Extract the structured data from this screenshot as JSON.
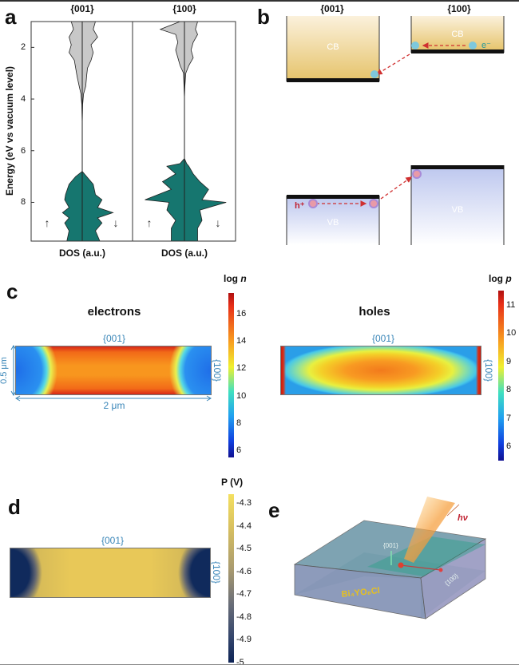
{
  "panel_labels": {
    "a": "a",
    "b": "b",
    "c": "c",
    "d": "d",
    "e": "e"
  },
  "chart_data": [
    {
      "type": "area",
      "panel": "a",
      "facets": [
        "{001}",
        "{100}"
      ],
      "ylabel": "Energy (eV vs vacuum level)",
      "xlabel": "DOS (a.u.)",
      "yticks": [
        2,
        4,
        6,
        8
      ],
      "ylim": [
        1,
        9.5
      ],
      "y_inverted": true,
      "spin_labels": [
        "↑",
        "↓"
      ],
      "colors": {
        "conduction": "#c8c8c8",
        "valence": "#16766f"
      },
      "series": [
        {
          "facet": "{001}",
          "points_energy_up_down": [
            [
              1,
              0.25,
              0.3
            ],
            [
              1.3,
              0.2,
              0.25
            ],
            [
              1.6,
              0.3,
              0.35
            ],
            [
              1.9,
              0.25,
              0.2
            ],
            [
              2.2,
              0.3,
              0.25
            ],
            [
              2.5,
              0.18,
              0.2
            ],
            [
              2.8,
              0.15,
              0.12
            ],
            [
              3.1,
              0.12,
              0.1
            ],
            [
              3.5,
              0.07,
              0.08
            ],
            [
              3.8,
              0.03,
              0.03
            ],
            [
              4.2,
              0.01,
              0.01
            ],
            [
              5,
              0,
              0
            ],
            [
              6.8,
              0,
              0
            ],
            [
              7,
              0.15,
              0.1
            ],
            [
              7.3,
              0.3,
              0.25
            ],
            [
              7.7,
              0.38,
              0.3
            ],
            [
              7.9,
              0.4,
              0.45
            ],
            [
              8.2,
              0.3,
              0.35
            ],
            [
              8.4,
              0.45,
              0.7
            ],
            [
              8.6,
              0.3,
              0.35
            ],
            [
              8.8,
              0.4,
              0.45
            ],
            [
              9.1,
              0.3,
              0.3
            ],
            [
              9.5,
              0.35,
              0.4
            ]
          ]
        },
        {
          "facet": "{100}",
          "points_energy_up_down": [
            [
              1,
              0.1,
              0.3
            ],
            [
              1.3,
              0.55,
              0.25
            ],
            [
              1.5,
              0.2,
              0.3
            ],
            [
              1.8,
              0.15,
              0.2
            ],
            [
              2.1,
              0.2,
              0.15
            ],
            [
              2.4,
              0.15,
              0.2
            ],
            [
              2.7,
              0.1,
              0.1
            ],
            [
              3,
              0.02,
              0.03
            ],
            [
              3.5,
              0.01,
              0.01
            ],
            [
              4,
              0,
              0
            ],
            [
              6.3,
              0,
              0
            ],
            [
              6.5,
              0.1,
              0.05
            ],
            [
              6.6,
              0.4,
              0.1
            ],
            [
              6.9,
              0.2,
              0.2
            ],
            [
              7.2,
              0.5,
              0.35
            ],
            [
              7.5,
              0.3,
              0.55
            ],
            [
              7.9,
              0.9,
              0.4
            ],
            [
              8.0,
              0.35,
              0.95
            ],
            [
              8.3,
              0.4,
              0.35
            ],
            [
              8.7,
              0.2,
              0.4
            ],
            [
              9,
              0.3,
              0.3
            ],
            [
              9.5,
              0.3,
              0.3
            ]
          ]
        }
      ]
    },
    {
      "type": "heatmap",
      "panel": "c",
      "title": "electrons",
      "colorbar_label": "log n",
      "colorbar_ticks": [
        6,
        8,
        10,
        12,
        14,
        16
      ],
      "colorbar_range": [
        5.5,
        17.5
      ],
      "colormap": "jet",
      "top_facet": "{001}",
      "side_facet": "{100}",
      "height_label": "0.5 μm",
      "width_label": "2 μm"
    },
    {
      "type": "heatmap",
      "panel": "c",
      "title": "holes",
      "colorbar_label": "log p",
      "colorbar_ticks": [
        6,
        7,
        8,
        9,
        10,
        11
      ],
      "colorbar_range": [
        5.5,
        11.5
      ],
      "colormap": "jet",
      "top_facet": "{001}",
      "side_facet": "{100}"
    },
    {
      "type": "heatmap",
      "panel": "d",
      "colorbar_label": "P (V)",
      "colorbar_ticks": [
        -4.3,
        -4.4,
        -4.5,
        -4.6,
        -4.7,
        -4.8,
        -4.9,
        -5
      ],
      "colorbar_range": [
        -5,
        -4.26
      ],
      "colormap": "cividis",
      "top_facet": "{001}",
      "side_facet": "{100}"
    }
  ],
  "band_diagram": {
    "facets": [
      "{001}",
      "{100}"
    ],
    "cb_label": "CB",
    "vb_label": "VB",
    "electron_label": "e⁻",
    "hole_label": "h⁺",
    "colors": {
      "cb": "#e9c97a",
      "vb": "#c5cdf0",
      "electron": "#7ec8dc",
      "hole": "#e89aa8",
      "arrow": "#d03030"
    }
  },
  "schematic": {
    "material": "Bi₄YO₈Cl",
    "light_label": "hν",
    "top_facet": "{001}",
    "side_facet": "{100}"
  }
}
